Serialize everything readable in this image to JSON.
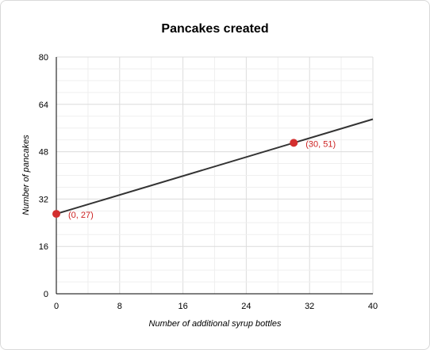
{
  "chart_data": {
    "type": "line",
    "title": "Pancakes created",
    "xlabel": "Number of additional syrup bottles",
    "ylabel": "Number of pancakes",
    "xlim": [
      0,
      40
    ],
    "ylim": [
      0,
      80
    ],
    "x_ticks": [
      0,
      8,
      16,
      24,
      32,
      40
    ],
    "y_ticks": [
      0,
      16,
      32,
      48,
      64,
      80
    ],
    "grid": true,
    "minor_grid_step": 4,
    "series": [
      {
        "x": [
          0,
          40
        ],
        "y": [
          27,
          59
        ],
        "color": "#333333"
      }
    ],
    "points": [
      {
        "x": 0,
        "y": 27,
        "label": "(0, 27)",
        "color": "#d32f2f"
      },
      {
        "x": 30,
        "y": 51,
        "label": "(30, 51)",
        "color": "#d32f2f"
      }
    ]
  }
}
